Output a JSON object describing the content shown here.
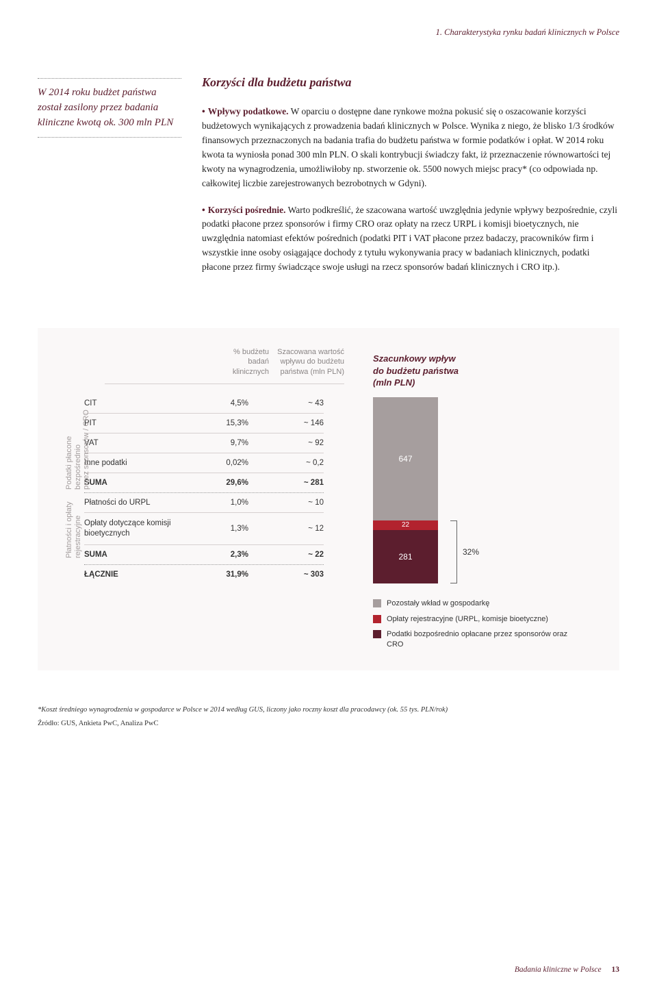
{
  "header_line": "1. Charakterystyka rynku badań klinicznych w Polsce",
  "pullquote": "W 2014 roku budżet państwa został zasilony przez badania kliniczne kwotą ok. 300 mln PLN",
  "section_title": "Korzyści dla budżetu państwa",
  "para1_lead": "Wpływy podatkowe.",
  "para1_body": " W oparciu o dostępne dane rynkowe można pokusić się o oszacowanie korzyści budżetowych wynikających z prowadzenia badań klinicznych w Polsce. Wynika z niego, że blisko 1/3 środków finansowych przeznaczonych na badania trafia do budżetu państwa w formie podatków i opłat. W 2014 roku kwota ta wyniosła ponad 300 mln PLN. O skali kontrybucji świadczy fakt, iż przeznaczenie równowartości tej kwoty na wynagrodzenia, umożliwiłoby np. stworzenie ok. 5500 nowych miejsc pracy* (co odpowiada np. całkowitej liczbie zarejestrowanych bezrobotnych w Gdyni).",
  "para2_lead": "Korzyści pośrednie.",
  "para2_body": " Warto podkreślić, że szacowana wartość uwzględnia jedynie wpływy bezpośrednie, czyli podatki płacone przez sponsorów i firmy CRO oraz opłaty na rzecz URPL i komisji bioetycznych, nie uwzględnia natomiast efektów pośrednich (podatki PIT i VAT płacone przez badaczy, pracowników firm i wszystkie inne osoby osiągające dochody z tytułu wykonywania pracy w badaniach klinicznych, podatki płacone przez firmy świadczące swoje usługi na rzecz sponsorów badań klinicznych i CRO itp.).",
  "chart": {
    "col_headers": {
      "c2_l1": "% budżetu",
      "c2_l2": "badań",
      "c2_l3": "klinicznych",
      "c3_l1": "Szacowana wartość",
      "c3_l2": "wpływu do budżetu",
      "c3_l3": "państwa (mln PLN)"
    },
    "group1_label_l1": "Podatki płacone",
    "group1_label_l2": "bezpośrednio",
    "group1_label_l3": "przez sponsorów / CRO",
    "group2_label_l1": "Płatności i opłaty",
    "group2_label_l2": "rejestracyjne",
    "rows_g1": [
      {
        "label": "CIT",
        "pct": "4,5%",
        "val": "~ 43"
      },
      {
        "label": "PIT",
        "pct": "15,3%",
        "val": "~ 146"
      },
      {
        "label": "VAT",
        "pct": "9,7%",
        "val": "~ 92"
      },
      {
        "label": "Inne podatki",
        "pct": "0,02%",
        "val": "~ 0,2"
      }
    ],
    "sum1": {
      "label": "SUMA",
      "pct": "29,6%",
      "val": "~ 281"
    },
    "rows_g2": [
      {
        "label": "Płatności do URPL",
        "pct": "1,0%",
        "val": "~ 10"
      },
      {
        "label": "Opłaty dotyczące komisji bioetycznych",
        "pct": "1,3%",
        "val": "~ 12"
      }
    ],
    "sum2": {
      "label": "SUMA",
      "pct": "2,3%",
      "val": "~ 22"
    },
    "total": {
      "label": "ŁĄCZNIE",
      "pct": "31,9%",
      "val": "~ 303"
    },
    "bar": {
      "title_l1": "Szacunkowy wpływ",
      "title_l2": "do budżetu państwa",
      "title_l3": "(mln PLN)",
      "segments": [
        {
          "value": 647,
          "height": 180,
          "color": "#a69e9e",
          "text_color": "#ffffff"
        },
        {
          "value": 22,
          "height": 14,
          "color": "#b2232e",
          "text_color": "#ffffff"
        },
        {
          "value": 281,
          "height": 78,
          "color": "#5c1e2e",
          "text_color": "#ffffff"
        }
      ],
      "bracket_pct": "32%",
      "bracket_height": 92
    },
    "legend": [
      {
        "color": "#a69e9e",
        "label": "Pozostały wkład w gospodarkę"
      },
      {
        "color": "#b2232e",
        "label": "Opłaty rejestracyjne (URPL, komisje bioetyczne)"
      },
      {
        "color": "#5c1e2e",
        "label": "Podatki bozpośrednio opłacane przez sponsorów oraz CRO"
      }
    ]
  },
  "footnote": "*Koszt średniego wynagrodzenia w gospodarce w Polsce w 2014 według GUS, liczony jako roczny koszt dla pracodawcy (ok. 55 tys. PLN/rok)",
  "source": "Źródło: GUS, Ankieta PwC, Analiza PwC",
  "footer_doc": "Badania kliniczne w Polsce",
  "footer_page": "13"
}
